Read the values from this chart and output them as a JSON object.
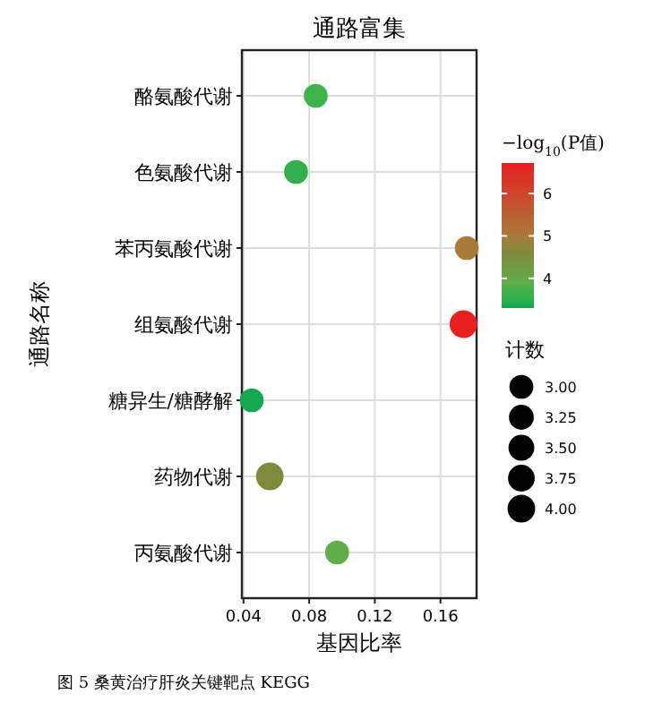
{
  "chart_data": {
    "type": "bubble",
    "title": "通路富集",
    "xlabel": "基因比率",
    "ylabel": "通路名称",
    "clabel": "−log$_{10}$(P值)",
    "legend_title": "计数",
    "categories": [
      "酪氨酸代谢",
      "色氨酸代谢",
      "苯丙氨酸代谢",
      "组氨酸代谢",
      "糖异生/糖酵解",
      "药物代谢",
      "丙氨酸代谢"
    ],
    "values": [
      0.084,
      0.072,
      0.176,
      0.174,
      0.045,
      0.056,
      0.097
    ],
    "sizes": [
      3,
      3,
      3,
      4,
      3,
      4,
      3
    ],
    "cvalues": [
      3.7,
      3.5,
      5.0,
      6.7,
      3.3,
      4.6,
      3.9
    ],
    "colors": [
      "#3db34a",
      "#2fb04a",
      "#a87a3a",
      "#e82020",
      "#14a850",
      "#7f8a3a",
      "#5fae4a"
    ],
    "xlim": [
      0.039,
      0.182
    ],
    "xticks": [
      0.04,
      0.08,
      0.12,
      0.16
    ],
    "clim": [
      3.3,
      6.72
    ],
    "cticks": [
      4,
      5,
      6
    ],
    "size_legend": [
      {
        "value": 3,
        "label": "3.00"
      },
      {
        "value": 3.25,
        "label": "3.25"
      },
      {
        "value": 3.5,
        "label": "3.50"
      },
      {
        "value": 3.75,
        "label": "3.75"
      },
      {
        "value": 4,
        "label": "4.00"
      }
    ],
    "grid": true,
    "orientation": "horizontal",
    "annotations": [
      "图 5 桑黄治疗肝炎关键靶点 KEGG"
    ]
  }
}
